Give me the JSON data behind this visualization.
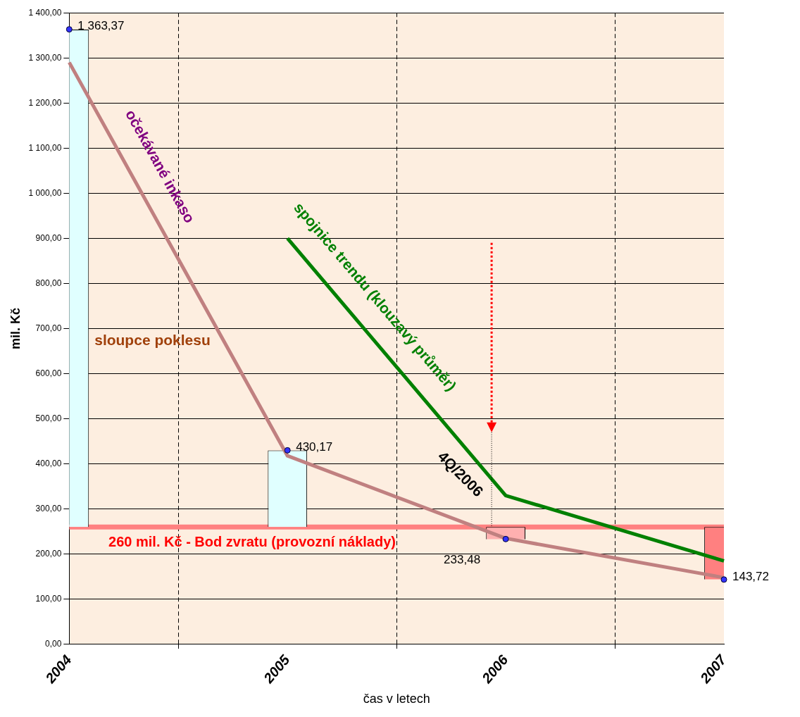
{
  "chart_data": {
    "type": "bar",
    "xlabel": "čas v letech",
    "ylabel": "mil. Kč",
    "categories": [
      "2004",
      "2005",
      "2006",
      "2007"
    ],
    "series": [
      {
        "name": "sloupce poklesu",
        "colors": [
          "#e0ffff",
          "#e0ffff",
          "#ffb0b0",
          "#ff8080"
        ],
        "base": [
          260,
          260,
          260,
          260
        ],
        "values": [
          1103,
          170,
          -27,
          -116
        ]
      },
      {
        "type": "line",
        "name": "očekávané inkaso",
        "color": "#c08080",
        "values": [
          1290,
          418,
          235,
          148
        ]
      },
      {
        "type": "line",
        "name": "spojnice trendu (klouzavý průměr)",
        "color": "#008000",
        "values": [
          null,
          900,
          330,
          185
        ]
      },
      {
        "type": "scatter",
        "color": "#3333ff",
        "marker": "circle",
        "values": [
          1363.37,
          430.17,
          233.48,
          143.72
        ],
        "value_labels": [
          "1 363,37",
          "430,17",
          "233,48",
          "143,72"
        ]
      }
    ],
    "ylim": [
      0,
      1400
    ],
    "yticks": [
      {
        "value": 0,
        "label": "0,00"
      },
      {
        "value": 100,
        "label": "100,00"
      },
      {
        "value": 200,
        "label": "200,00"
      },
      {
        "value": 300,
        "label": "300,00"
      },
      {
        "value": 400,
        "label": "400,00"
      },
      {
        "value": 500,
        "label": "500,00"
      },
      {
        "value": 600,
        "label": "600,00"
      },
      {
        "value": 700,
        "label": "700,00"
      },
      {
        "value": 800,
        "label": "800,00"
      },
      {
        "value": 900,
        "label": "900,00"
      },
      {
        "value": 1000,
        "label": "1 000,00"
      },
      {
        "value": 1100,
        "label": "1 100,00"
      },
      {
        "value": 1200,
        "label": "1 200,00"
      },
      {
        "value": 1300,
        "label": "1 300,00"
      },
      {
        "value": 1400,
        "label": "1 400,00"
      }
    ],
    "ref_lines": [
      {
        "axis": "y",
        "value": 260,
        "label": "260 mil. Kč - Bod zvratu (provozní náklady)",
        "color": "#ff8080"
      }
    ],
    "annotations": [
      {
        "text": "4Q/2006",
        "x": "2006",
        "y": 260
      }
    ],
    "grid": true,
    "legend": false
  }
}
